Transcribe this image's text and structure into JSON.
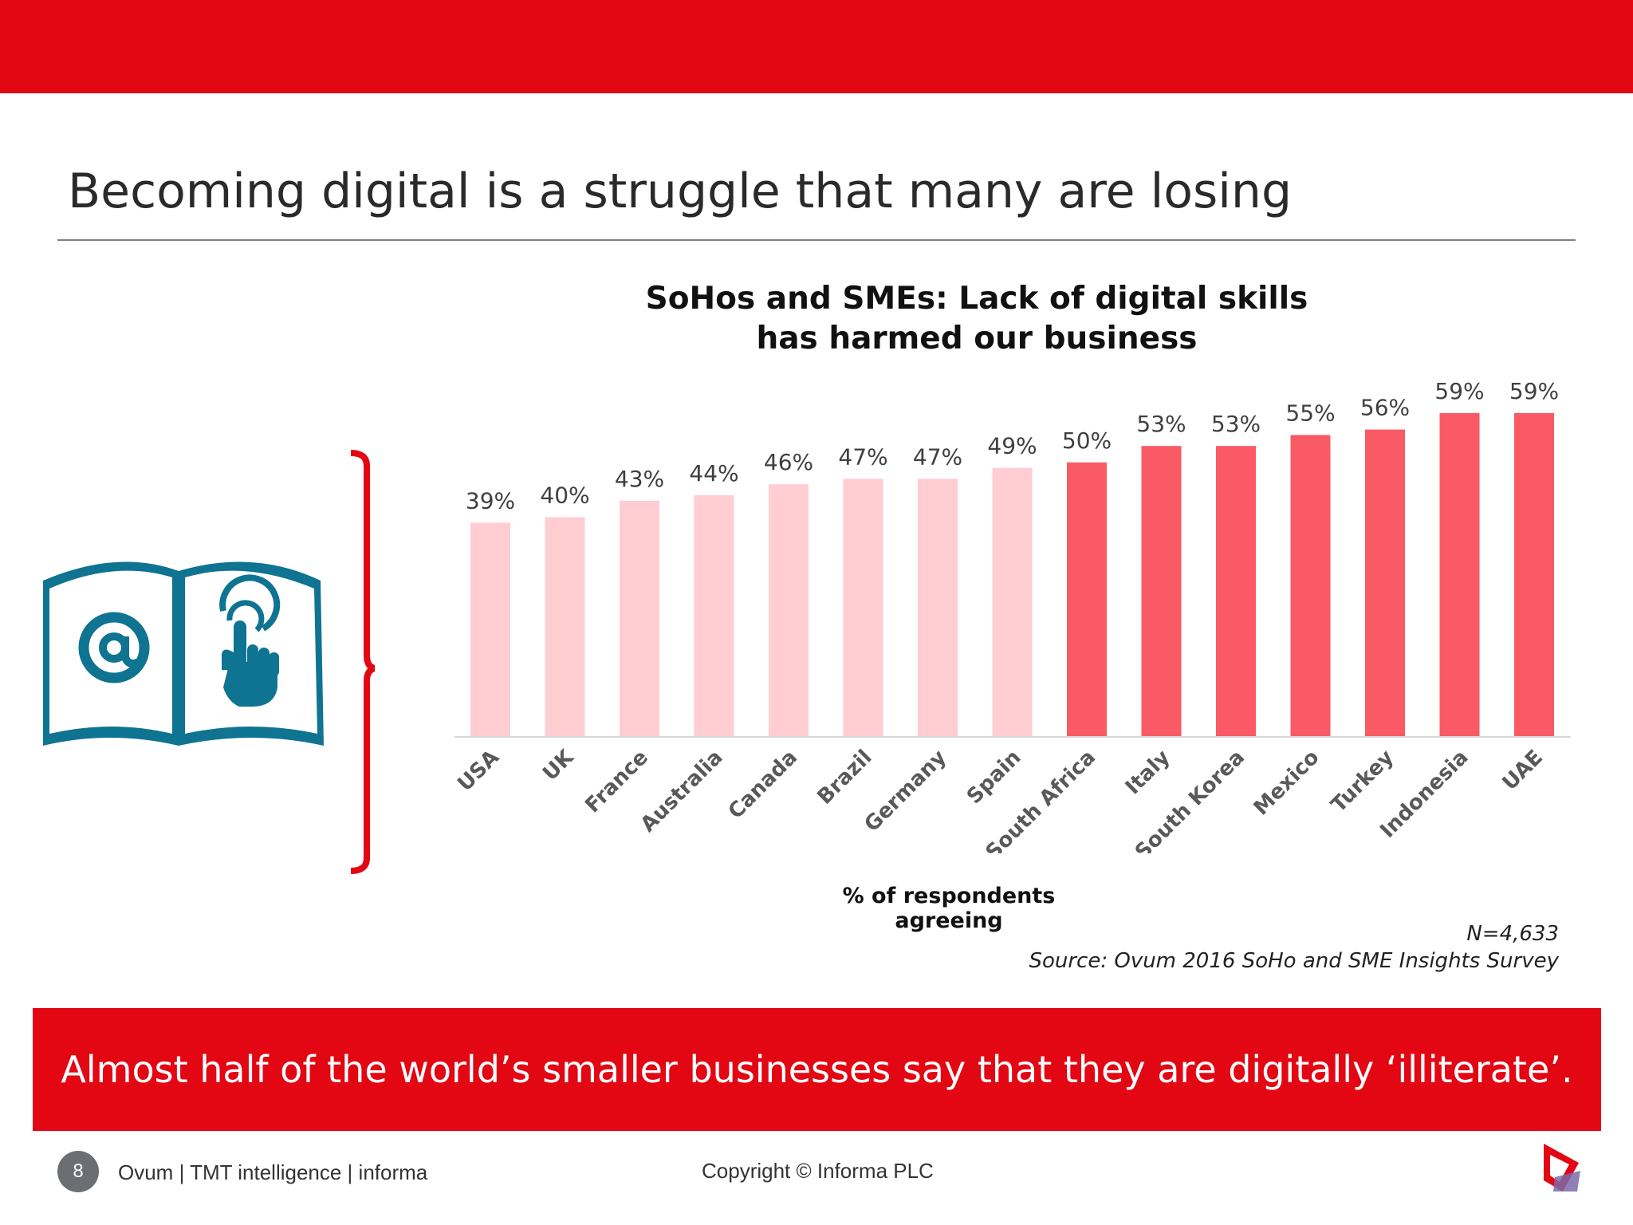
{
  "slide": {
    "title": "Becoming digital is a struggle that many are losing",
    "banner": "Almost half of the world’s smaller businesses say that they are digitally ‘illiterate’.",
    "n_note": "N=4,633",
    "source": "Source: Ovum 2016 SoHo and SME Insights Survey",
    "footer": {
      "page_number": "8",
      "left": "Ovum | TMT intelligence | informa",
      "center": "Copyright © Informa PLC"
    }
  },
  "colors": {
    "brand_red": "#e30613",
    "bar_light": "#ffcdd2",
    "bar_dark": "#f95a66",
    "icon_teal": "#0f7392"
  },
  "icons": [
    "open-book-icon",
    "at-sign-icon",
    "touch-hand-icon",
    "bracket-icon",
    "logo-icon"
  ],
  "chart_data": {
    "type": "bar",
    "title": "SoHos and SMEs: Lack of digital skills has harmed our business",
    "title_lines": [
      "SoHos and SMEs: Lack of digital skills",
      "has harmed our business"
    ],
    "xlabel": "% of respondents agreeing",
    "ylabel": "",
    "ylim": [
      0,
      59
    ],
    "grid": false,
    "categories": [
      "USA",
      "UK",
      "France",
      "Australia",
      "Canada",
      "Brazil",
      "Germany",
      "Spain",
      "South Africa",
      "Italy",
      "South Korea",
      "Mexico",
      "Turkey",
      "Indonesia",
      "UAE"
    ],
    "values": [
      39,
      40,
      43,
      44,
      46,
      47,
      47,
      49,
      50,
      53,
      53,
      55,
      56,
      59,
      59
    ],
    "data_labels": [
      "39%",
      "40%",
      "43%",
      "44%",
      "46%",
      "47%",
      "47%",
      "49%",
      "50%",
      "53%",
      "53%",
      "55%",
      "56%",
      "59%",
      "59%"
    ],
    "highlight_from_index": 8
  }
}
